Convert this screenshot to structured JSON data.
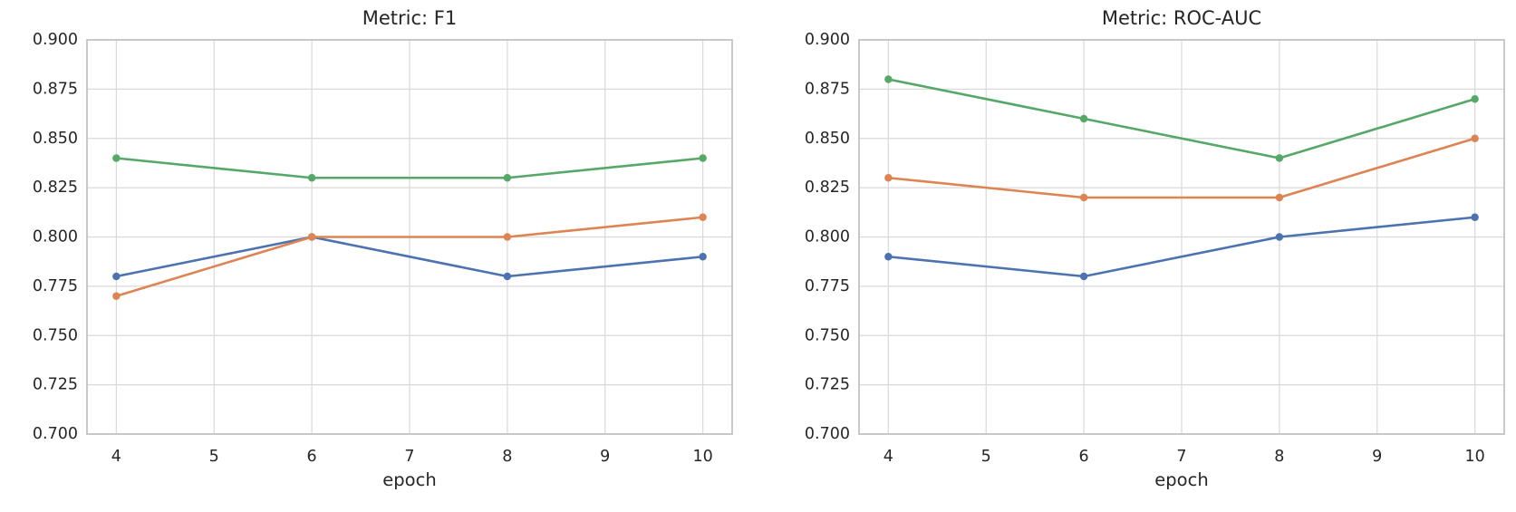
{
  "styles": {
    "background": "#ffffff",
    "grid_color": "#d9d9d9",
    "spine_color": "#c3c3c3",
    "text_color": "#262626"
  },
  "chart_data": [
    {
      "type": "line",
      "title": "Metric: F1",
      "xlabel": "epoch",
      "ylabel": "",
      "x": [
        4,
        6,
        8,
        10
      ],
      "series": [
        {
          "name": "blue",
          "color": "#4C72B0",
          "values": [
            0.78,
            0.8,
            0.78,
            0.79
          ]
        },
        {
          "name": "orange",
          "color": "#DD8452",
          "values": [
            0.77,
            0.8,
            0.8,
            0.81
          ]
        },
        {
          "name": "green",
          "color": "#55A868",
          "values": [
            0.84,
            0.83,
            0.83,
            0.84
          ]
        }
      ],
      "xticks": [
        4,
        5,
        6,
        7,
        8,
        9,
        10
      ],
      "yticks": [
        0.7,
        0.725,
        0.75,
        0.775,
        0.8,
        0.825,
        0.85,
        0.875,
        0.9
      ],
      "xlim": [
        3.7,
        10.3
      ],
      "ylim": [
        0.7,
        0.9
      ],
      "grid": true,
      "legend": "none",
      "markers": "circle"
    },
    {
      "type": "line",
      "title": "Metric: ROC-AUC",
      "xlabel": "epoch",
      "ylabel": "",
      "x": [
        4,
        6,
        8,
        10
      ],
      "series": [
        {
          "name": "blue",
          "color": "#4C72B0",
          "values": [
            0.79,
            0.78,
            0.8,
            0.81
          ]
        },
        {
          "name": "orange",
          "color": "#DD8452",
          "values": [
            0.83,
            0.82,
            0.82,
            0.85
          ]
        },
        {
          "name": "green",
          "color": "#55A868",
          "values": [
            0.88,
            0.86,
            0.84,
            0.87
          ]
        }
      ],
      "xticks": [
        4,
        5,
        6,
        7,
        8,
        9,
        10
      ],
      "yticks": [
        0.7,
        0.725,
        0.75,
        0.775,
        0.8,
        0.825,
        0.85,
        0.875,
        0.9
      ],
      "xlim": [
        3.7,
        10.3
      ],
      "ylim": [
        0.7,
        0.9
      ],
      "grid": true,
      "legend": "none",
      "markers": "circle"
    }
  ]
}
